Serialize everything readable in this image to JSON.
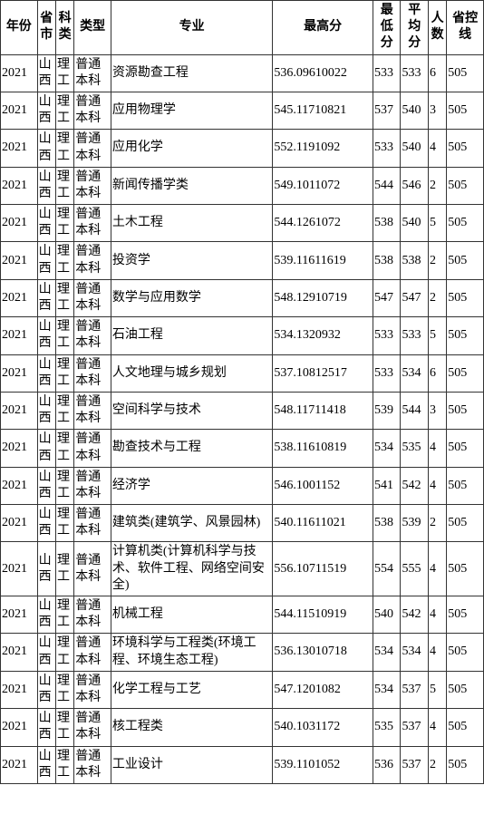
{
  "columns": [
    "年份",
    "省市",
    "科类",
    "类型",
    "专业",
    "最高分",
    "最低分",
    "平均分",
    "人数",
    "省控线"
  ],
  "rows": [
    [
      "2021",
      "山西",
      "理工",
      "普通本科",
      "资源勘查工程",
      "536.09610022",
      "533",
      "533",
      "6",
      "505"
    ],
    [
      "2021",
      "山西",
      "理工",
      "普通本科",
      "应用物理学",
      "545.11710821",
      "537",
      "540",
      "3",
      "505"
    ],
    [
      "2021",
      "山西",
      "理工",
      "普通本科",
      "应用化学",
      "552.1191092",
      "533",
      "540",
      "4",
      "505"
    ],
    [
      "2021",
      "山西",
      "理工",
      "普通本科",
      "新闻传播学类",
      "549.1011072",
      "544",
      "546",
      "2",
      "505"
    ],
    [
      "2021",
      "山西",
      "理工",
      "普通本科",
      "土木工程",
      "544.1261072",
      "538",
      "540",
      "5",
      "505"
    ],
    [
      "2021",
      "山西",
      "理工",
      "普通本科",
      "投资学",
      "539.11611619",
      "538",
      "538",
      "2",
      "505"
    ],
    [
      "2021",
      "山西",
      "理工",
      "普通本科",
      "数学与应用数学",
      "548.12910719",
      "547",
      "547",
      "2",
      "505"
    ],
    [
      "2021",
      "山西",
      "理工",
      "普通本科",
      "石油工程",
      "534.1320932",
      "533",
      "533",
      "5",
      "505"
    ],
    [
      "2021",
      "山西",
      "理工",
      "普通本科",
      "人文地理与城乡规划",
      "537.10812517",
      "533",
      "534",
      "6",
      "505"
    ],
    [
      "2021",
      "山西",
      "理工",
      "普通本科",
      "空间科学与技术",
      "548.11711418",
      "539",
      "544",
      "3",
      "505"
    ],
    [
      "2021",
      "山西",
      "理工",
      "普通本科",
      "勘查技术与工程",
      "538.11610819",
      "534",
      "535",
      "4",
      "505"
    ],
    [
      "2021",
      "山西",
      "理工",
      "普通本科",
      "经济学",
      "546.1001152",
      "541",
      "542",
      "4",
      "505"
    ],
    [
      "2021",
      "山西",
      "理工",
      "普通本科",
      "建筑类(建筑学、风景园林)",
      "540.11611021",
      "538",
      "539",
      "2",
      "505"
    ],
    [
      "2021",
      "山西",
      "理工",
      "普通本科",
      "计算机类(计算机科学与技术、软件工程、网络空间安全)",
      "556.10711519",
      "554",
      "555",
      "4",
      "505"
    ],
    [
      "2021",
      "山西",
      "理工",
      "普通本科",
      "机械工程",
      "544.11510919",
      "540",
      "542",
      "4",
      "505"
    ],
    [
      "2021",
      "山西",
      "理工",
      "普通本科",
      "环境科学与工程类(环境工程、环境生态工程)",
      "536.13010718",
      "534",
      "534",
      "4",
      "505"
    ],
    [
      "2021",
      "山西",
      "理工",
      "普通本科",
      "化学工程与工艺",
      "547.1201082",
      "534",
      "537",
      "5",
      "505"
    ],
    [
      "2021",
      "山西",
      "理工",
      "普通本科",
      "核工程类",
      "540.1031172",
      "535",
      "537",
      "4",
      "505"
    ],
    [
      "2021",
      "山西",
      "理工",
      "普通本科",
      "工业设计",
      "539.1101052",
      "536",
      "537",
      "2",
      "505"
    ]
  ],
  "colors": {
    "border": "#333333",
    "background": "#ffffff",
    "text": "#000000"
  },
  "fontsize": 14
}
